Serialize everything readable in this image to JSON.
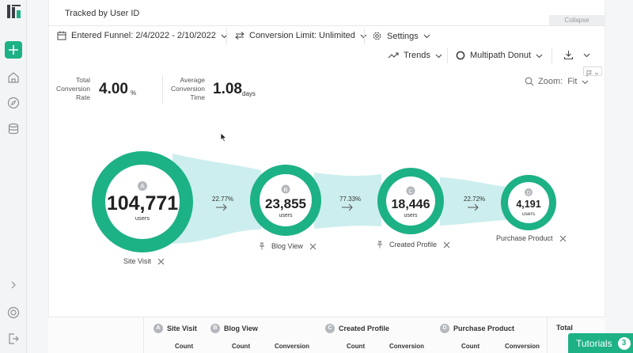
{
  "header": {
    "title": "Tracked by User ID",
    "collapse_label": "Collapse"
  },
  "toolbar": {
    "date_range": "Entered Funnel: 2/4/2022 - 2/10/2022",
    "conversion_limit": "Conversion Limit: Unlimited",
    "settings": "Settings",
    "trends": "Trends",
    "view_mode": "Multipath Donut"
  },
  "metrics": {
    "conversion_rate_label": [
      "Total",
      "Conversion",
      "Rate"
    ],
    "conversion_rate_value": "4.00",
    "conversion_rate_unit": "%",
    "conversion_time_label": [
      "Average",
      "Conversion",
      "Time"
    ],
    "conversion_time_value": "1.08",
    "conversion_time_unit": "days"
  },
  "zoom": {
    "label": "Zoom:",
    "value": "Fit"
  },
  "funnel": {
    "steps": [
      {
        "letter": "A",
        "count": "104,771",
        "unit": "users",
        "name": "Site Visit"
      },
      {
        "letter": "B",
        "count": "23,855",
        "unit": "users",
        "name": "Blog View"
      },
      {
        "letter": "C",
        "count": "18,446",
        "unit": "users",
        "name": "Created Profile"
      },
      {
        "letter": "D",
        "count": "4,191",
        "unit": "users",
        "name": "Purchase Product"
      }
    ],
    "rates": [
      "22.77%",
      "77.33%",
      "22.72%"
    ]
  },
  "table": {
    "steps": [
      {
        "letter": "A",
        "name": "Site Visit"
      },
      {
        "letter": "B",
        "name": "Blog View"
      },
      {
        "letter": "C",
        "name": "Created Profile"
      },
      {
        "letter": "D",
        "name": "Purchase Product"
      }
    ],
    "total_label": "Total",
    "count_label": "Count",
    "conversion_label": "Conversion"
  },
  "tutorials": {
    "label": "Tutorials",
    "count": "3"
  },
  "colors": {
    "accent": "#1db186",
    "flow": "#cdeeee"
  },
  "icons": [
    "app-logo-icon",
    "plus-icon",
    "home-icon",
    "compass-icon",
    "database-icon",
    "chevron-right-icon",
    "help-icon",
    "logout-icon",
    "calendar-icon",
    "swap-icon",
    "gear-icon",
    "trend-icon",
    "donut-icon",
    "download-icon",
    "flag-icon",
    "search-icon",
    "pin-icon",
    "close-icon",
    "arrow-right-icon",
    "chevron-down-icon"
  ]
}
